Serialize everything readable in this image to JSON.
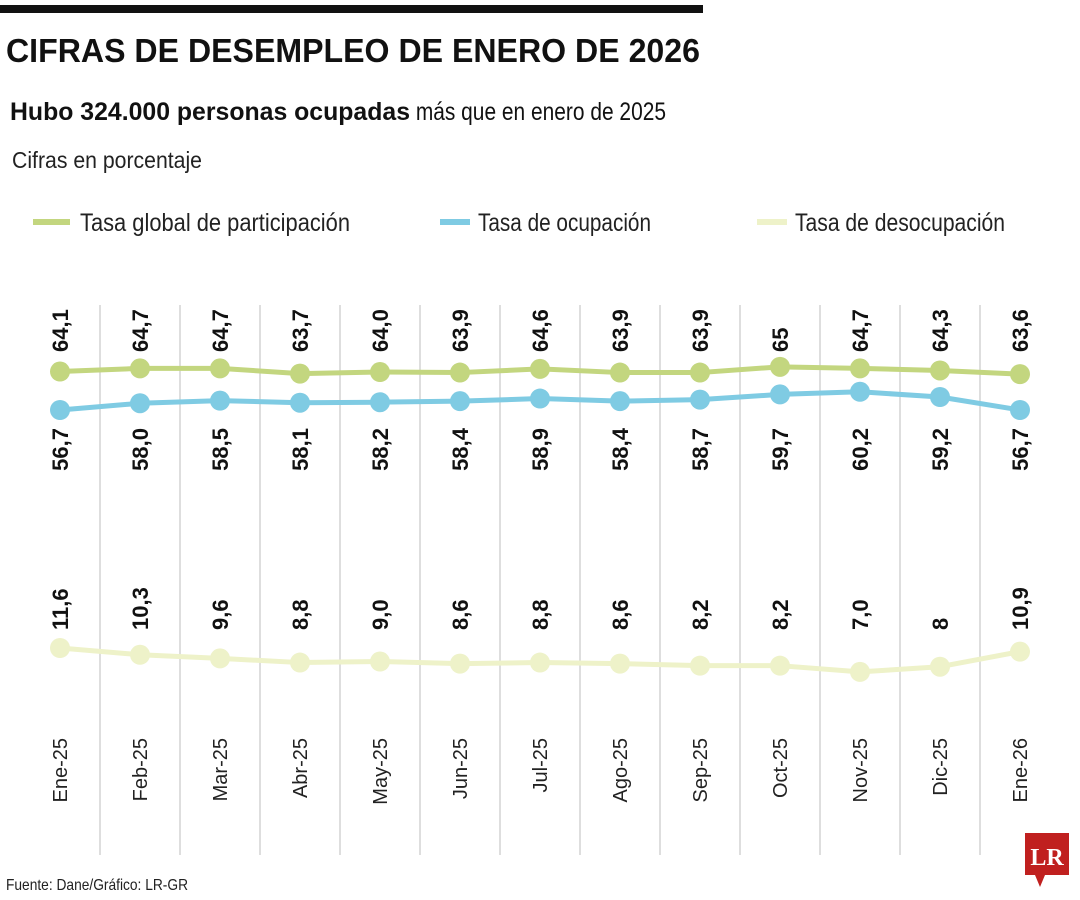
{
  "header": {
    "title": "CIFRAS DE DESEMPLEO DE ENERO DE 2026",
    "subtitle_bold": "Hubo 324.000 personas ocupadas",
    "subtitle_rest": " más que en enero de 2025",
    "units_note": "Cifras en porcentaje"
  },
  "footer": {
    "source": "Fuente: Dane/Gráfico: LR-GR",
    "logo_text": "LR",
    "logo_color": "#c0201f"
  },
  "chart_data": {
    "type": "line",
    "title": "CIFRAS DE DESEMPLEO DE ENERO DE 2026",
    "categories": [
      "Ene-25",
      "Feb-25",
      "Mar-25",
      "Abr-25",
      "May-25",
      "Jun-25",
      "Jul-25",
      "Ago-25",
      "Sep-25",
      "Oct-25",
      "Nov-25",
      "Dic-25",
      "Ene-26"
    ],
    "legend_position": "top",
    "grid": "vertical",
    "series": [
      {
        "name": "Tasa global de participación",
        "color": "#c3d67f",
        "values": [
          64.1,
          64.7,
          64.7,
          63.7,
          64.0,
          63.9,
          64.6,
          63.9,
          63.9,
          65,
          64.7,
          64.3,
          63.6
        ],
        "labels": [
          "64,1",
          "64,7",
          "64,7",
          "63,7",
          "64,0",
          "63,9",
          "64,6",
          "63,9",
          "63,9",
          "65",
          "64,7",
          "64,3",
          "63,6"
        ]
      },
      {
        "name": "Tasa de ocupación",
        "color": "#7fcbe3",
        "values": [
          56.7,
          58.0,
          58.5,
          58.1,
          58.2,
          58.4,
          58.9,
          58.4,
          58.7,
          59.7,
          60.2,
          59.2,
          56.7
        ],
        "labels": [
          "56,7",
          "58,0",
          "58,5",
          "58,1",
          "58,2",
          "58,4",
          "58,9",
          "58,4",
          "58,7",
          "59,7",
          "60,2",
          "59,2",
          "56,7"
        ]
      },
      {
        "name": "Tasa de desocupación",
        "color": "#eef2c9",
        "values": [
          11.6,
          10.3,
          9.6,
          8.8,
          9.0,
          8.6,
          8.8,
          8.6,
          8.2,
          8.2,
          7.0,
          8,
          10.9
        ],
        "labels": [
          "11,6",
          "10,3",
          "9,6",
          "8,8",
          "9,0",
          "8,6",
          "8,8",
          "8,6",
          "8,2",
          "8,2",
          "7,0",
          "8",
          "10,9"
        ]
      }
    ]
  }
}
